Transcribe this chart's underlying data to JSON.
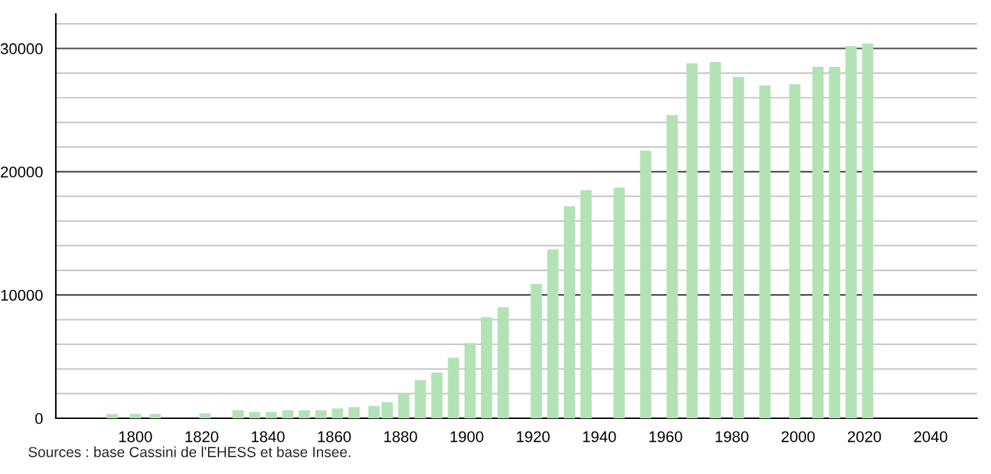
{
  "chart_data": {
    "type": "bar",
    "x": [
      1793,
      1800,
      1806,
      1821,
      1831,
      1836,
      1841,
      1846,
      1851,
      1856,
      1861,
      1866,
      1872,
      1876,
      1881,
      1886,
      1891,
      1896,
      1901,
      1906,
      1911,
      1921,
      1926,
      1931,
      1936,
      1946,
      1954,
      1962,
      1968,
      1975,
      1982,
      1990,
      1999,
      2006,
      2011,
      2016,
      2021
    ],
    "values": [
      350,
      350,
      350,
      400,
      650,
      500,
      500,
      650,
      650,
      650,
      800,
      900,
      1000,
      1300,
      2000,
      3100,
      3700,
      4900,
      6100,
      8200,
      9000,
      10900,
      13700,
      17200,
      18500,
      18700,
      21700,
      24600,
      28800,
      28900,
      27700,
      27000,
      27100,
      28500,
      28500,
      30200,
      30400
    ],
    "color": "#b3e3b5",
    "xlim": [
      1776,
      2054
    ],
    "xticks": [
      1800,
      1820,
      1840,
      1860,
      1880,
      1900,
      1920,
      1940,
      1960,
      1980,
      2000,
      2020,
      2040
    ],
    "ylim": [
      0,
      32800
    ],
    "yticks": [
      0,
      {
        "value": 2000,
        "label": null
      },
      {
        "value": 4000,
        "label": null
      },
      {
        "value": 6000,
        "label": null
      },
      {
        "value": 8000,
        "label": null
      },
      10000,
      {
        "value": 12000,
        "label": null
      },
      {
        "value": 14000,
        "label": null
      },
      {
        "value": 16000,
        "label": null
      },
      {
        "value": 18000,
        "label": null
      },
      20000,
      {
        "value": 22000,
        "label": null
      },
      {
        "value": 24000,
        "label": null
      },
      {
        "value": 26000,
        "label": null
      },
      {
        "value": 28000,
        "label": null
      },
      30000,
      {
        "value": 32000,
        "label": null
      }
    ],
    "grid": "y",
    "annotations": [
      "Sources : base Cassini de l'EHESS et base Insee."
    ]
  }
}
